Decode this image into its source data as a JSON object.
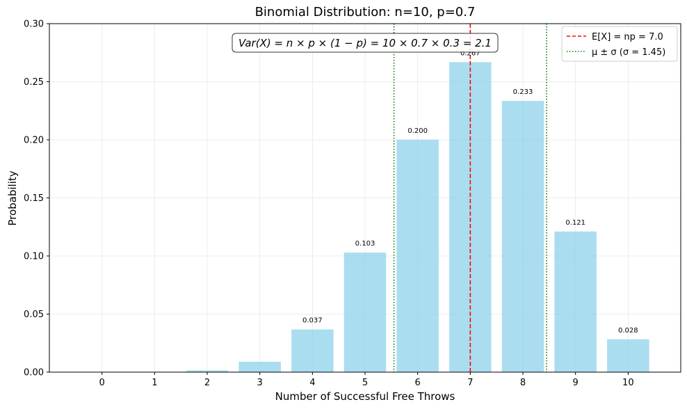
{
  "chart_data": {
    "type": "bar",
    "title": "Binomial Distribution: n=10, p=0.7",
    "xlabel": "Number of Successful Free Throws",
    "ylabel": "Probability",
    "categories": [
      "0",
      "1",
      "2",
      "3",
      "4",
      "5",
      "6",
      "7",
      "8",
      "9",
      "10"
    ],
    "x": [
      0,
      1,
      2,
      3,
      4,
      5,
      6,
      7,
      8,
      9,
      10
    ],
    "values": [
      5.9e-06,
      0.000138,
      0.001447,
      0.009002,
      0.036757,
      0.102919,
      0.200121,
      0.266828,
      0.233474,
      0.121061,
      0.028248
    ],
    "data_labels": [
      "",
      "",
      "",
      "",
      "0.037",
      "0.103",
      "0.200",
      "0.267",
      "0.233",
      "0.121",
      "0.028"
    ],
    "bar_color": "#87CEEB",
    "ylim": [
      0,
      0.3
    ],
    "xlim": [
      -1,
      11
    ],
    "yticks": [
      0.0,
      0.05,
      0.1,
      0.15,
      0.2,
      0.25,
      0.3
    ],
    "ytick_labels": [
      "0.00",
      "0.05",
      "0.10",
      "0.15",
      "0.20",
      "0.25",
      "0.30"
    ],
    "grid": true,
    "reference_lines": [
      {
        "label": "E[X] = np = 7.0",
        "x": [
          7.0
        ],
        "color": "#ff0000",
        "style": "dashed"
      },
      {
        "label": "μ ± σ (σ = 1.45)",
        "x": [
          5.55,
          8.45
        ],
        "color": "#008000",
        "style": "dotted"
      }
    ],
    "legend_position": "top-right",
    "annotation": "Var(X) = n × p × (1 − p) = 10 × 0.7 × 0.3 = 2.1"
  }
}
